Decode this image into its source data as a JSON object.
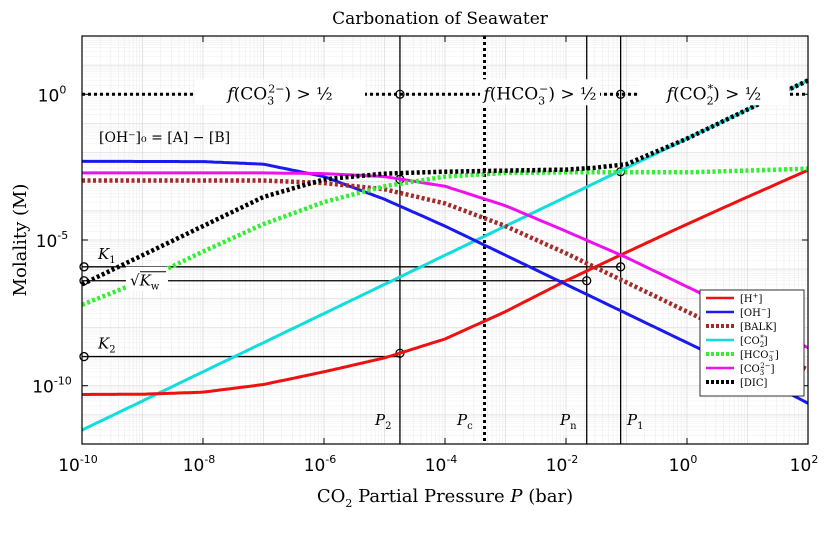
{
  "chart_data": {
    "type": "line",
    "title": "Carbonation of Seawater",
    "xlabel": "CO2 Partial Pressure P (bar)",
    "ylabel": "Molality (M)",
    "x_scale": "log",
    "y_scale": "log",
    "xlim": [
      1e-10,
      100
    ],
    "ylim": [
      1e-12,
      100.0
    ],
    "grid": true,
    "legend_position": "right",
    "x_ticks": [
      "10^-10",
      "10^-8",
      "10^-6",
      "10^-4",
      "10^-2",
      "10^0",
      "10^2"
    ],
    "y_ticks": [
      "10^-10",
      "10^-5",
      "10^0"
    ],
    "series": [
      {
        "name": "[H+]",
        "color": "#ee1111",
        "style": "solid",
        "points": [
          [
            1e-10,
            5e-11
          ],
          [
            1e-09,
            5.1e-11
          ],
          [
            1e-08,
            6e-11
          ],
          [
            1e-07,
            1.1e-10
          ],
          [
            1e-06,
            3e-10
          ],
          [
            1e-05,
            9e-10
          ],
          [
            0.0001,
            4e-09
          ],
          [
            0.001,
            3.5e-08
          ],
          [
            0.01,
            4e-07
          ],
          [
            0.1,
            3.8e-06
          ],
          [
            1,
            3.5e-05
          ],
          [
            10,
            0.0003
          ],
          [
            100,
            0.0025
          ]
        ]
      },
      {
        "name": "[OH-]",
        "color": "#1a1aee",
        "style": "solid",
        "points": [
          [
            1e-10,
            0.005
          ],
          [
            1e-08,
            0.0049
          ],
          [
            1e-07,
            0.004
          ],
          [
            1e-06,
            0.0015
          ],
          [
            1e-05,
            0.00025
          ],
          [
            0.0001,
            3e-05
          ],
          [
            0.001,
            3e-06
          ],
          [
            0.01,
            3e-07
          ],
          [
            0.1,
            3e-08
          ],
          [
            1,
            3e-09
          ],
          [
            10,
            3e-10
          ],
          [
            100,
            2.5e-11
          ]
        ]
      },
      {
        "name": "[BALK]",
        "color": "#a52a2a",
        "style": "dotted",
        "points": [
          [
            1e-10,
            0.0011
          ],
          [
            1e-07,
            0.0011
          ],
          [
            1e-06,
            0.0009
          ],
          [
            1e-05,
            0.00055
          ],
          [
            0.0001,
            0.00018
          ],
          [
            0.001,
            3e-05
          ],
          [
            0.01,
            3.5e-06
          ],
          [
            0.1,
            3.5e-07
          ],
          [
            1,
            3.5e-08
          ],
          [
            10,
            3.5e-09
          ],
          [
            100,
            3.5e-10
          ]
        ]
      },
      {
        "name": "[CO2*]",
        "color": "#11dddd",
        "style": "solid",
        "points": [
          [
            1e-10,
            3e-12
          ],
          [
            1e-08,
            3e-10
          ],
          [
            1e-06,
            3e-08
          ],
          [
            0.0001,
            3e-06
          ],
          [
            0.01,
            0.0003
          ],
          [
            1,
            0.03
          ],
          [
            100,
            3
          ]
        ]
      },
      {
        "name": "[HCO3-]",
        "color": "#33ee33",
        "style": "dotted",
        "points": [
          [
            1e-10,
            6e-08
          ],
          [
            1e-09,
            4e-07
          ],
          [
            1e-08,
            4e-06
          ],
          [
            1e-07,
            3.5e-05
          ],
          [
            1e-06,
            0.0002
          ],
          [
            1e-05,
            0.0007
          ],
          [
            0.0001,
            0.0015
          ],
          [
            0.001,
            0.002
          ],
          [
            0.01,
            0.0021
          ],
          [
            1,
            0.0021
          ],
          [
            100,
            0.0028
          ]
        ]
      },
      {
        "name": "[CO3^2-]",
        "color": "#ee11ee",
        "style": "solid",
        "points": [
          [
            1e-10,
            0.002
          ],
          [
            1e-07,
            0.002
          ],
          [
            1e-06,
            0.0019
          ],
          [
            1e-05,
            0.0015
          ],
          [
            0.0001,
            0.0007
          ],
          [
            0.001,
            0.00015
          ],
          [
            0.01,
            2e-05
          ],
          [
            0.1,
            2.5e-06
          ],
          [
            1,
            2.5e-07
          ],
          [
            10,
            2.5e-08
          ],
          [
            100,
            2e-09
          ]
        ]
      },
      {
        "name": "[DIC]",
        "color": "#000000",
        "style": "dotted",
        "points": [
          [
            1e-10,
            3e-07
          ],
          [
            1e-09,
            3e-06
          ],
          [
            1e-08,
            3e-05
          ],
          [
            1e-07,
            0.0003
          ],
          [
            1e-06,
            0.0012
          ],
          [
            1e-05,
            0.0019
          ],
          [
            0.0001,
            0.0022
          ],
          [
            0.001,
            0.0024
          ],
          [
            0.01,
            0.0026
          ],
          [
            0.03,
            0.003
          ],
          [
            0.1,
            0.004
          ],
          [
            1,
            0.03
          ],
          [
            10,
            0.3
          ],
          [
            100,
            3
          ]
        ]
      }
    ],
    "reference_lines": {
      "vertical": [
        {
          "label": "P2",
          "x": 1.8e-05,
          "style": "solid"
        },
        {
          "label": "Pc",
          "x": 0.00045,
          "style": "dotted"
        },
        {
          "label": "Pn",
          "x": 0.022,
          "style": "solid"
        },
        {
          "label": "P1",
          "x": 0.08,
          "style": "solid"
        }
      ],
      "horizontal": [
        {
          "label": "K1",
          "y": 1.2e-06
        },
        {
          "label": "√Kw",
          "y": 4e-07
        },
        {
          "label": "K2",
          "y": 1e-09
        }
      ]
    },
    "annotations": [
      {
        "text_main": "f(CO",
        "sub": "3",
        "sup": "2−",
        "tail": ") > ½"
      },
      {
        "text_main": "f(HCO",
        "sub": "3",
        "sup": "−",
        "tail": ") > ½"
      },
      {
        "text_main": "f(CO",
        "sub": "2",
        "sup": "*",
        "tail": ") > ½"
      },
      {
        "text_main": "[OH⁻]₀ = [A] − [B]"
      }
    ]
  }
}
